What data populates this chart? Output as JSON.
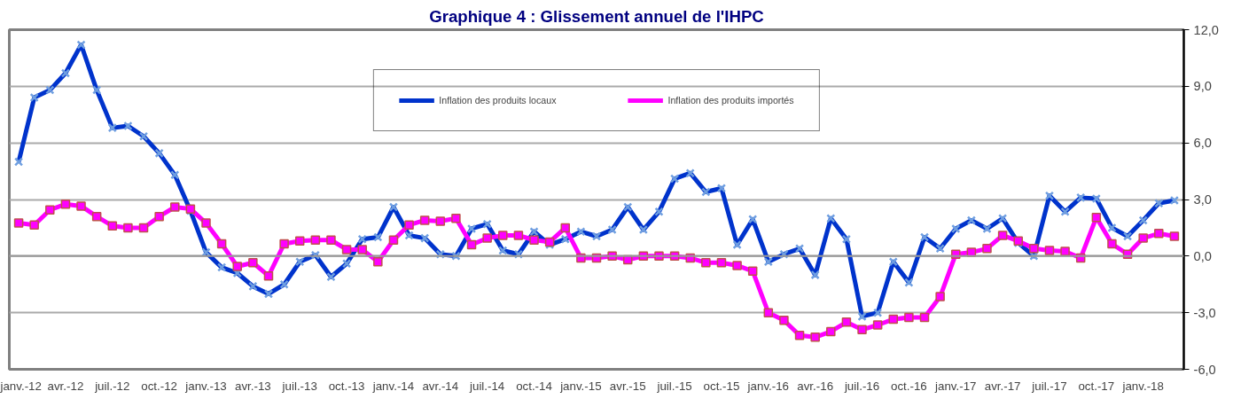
{
  "chart_data": {
    "type": "line",
    "title": "Graphique 4 : Glissement annuel de l'IHPC",
    "categories": [
      "janv.-12",
      null,
      null,
      "avr.-12",
      null,
      null,
      "juil.-12",
      null,
      null,
      "oct.-12",
      null,
      null,
      "janv.-13",
      null,
      null,
      "avr.-13",
      null,
      null,
      "juil.-13",
      null,
      null,
      "oct.-13",
      null,
      null,
      "janv.-14",
      null,
      null,
      "avr.-14",
      null,
      null,
      "juil.-14",
      null,
      null,
      "oct.-14",
      null,
      null,
      "janv.-15",
      null,
      null,
      "avr.-15",
      null,
      null,
      "juil.-15",
      null,
      null,
      "oct.-15",
      null,
      null,
      "janv.-16",
      null,
      null,
      "avr.-16",
      null,
      null,
      "juil.-16",
      null,
      null,
      "oct.-16",
      null,
      null,
      "janv.-17",
      null,
      null,
      "avr.-17",
      null,
      null,
      "juil.-17",
      null,
      null,
      "oct.-17",
      null,
      null,
      "janv.-18",
      null,
      null
    ],
    "series": [
      {
        "name": "Inflation des produits locaux",
        "color": "#0033cc",
        "marker": "cross",
        "values": [
          5.0,
          8.4,
          8.8,
          9.7,
          11.2,
          8.8,
          6.8,
          6.9,
          6.35,
          5.45,
          4.3,
          2.4,
          0.2,
          -0.6,
          -0.9,
          -1.6,
          -2.0,
          -1.5,
          -0.3,
          0.05,
          -1.1,
          -0.4,
          0.9,
          1.0,
          2.6,
          1.1,
          0.95,
          0.1,
          0.0,
          1.45,
          1.7,
          0.3,
          0.1,
          1.3,
          0.6,
          0.9,
          1.3,
          1.05,
          1.4,
          2.6,
          1.4,
          2.35,
          4.1,
          4.4,
          3.4,
          3.6,
          0.6,
          1.95,
          -0.3,
          0.1,
          0.4,
          -1.0,
          2.0,
          0.9,
          -3.2,
          -3.0,
          -0.3,
          -1.4,
          1.0,
          0.4,
          1.45,
          1.9,
          1.45,
          2.0,
          0.7,
          0.0,
          3.2,
          2.35,
          3.1,
          3.05,
          1.5,
          1.05,
          1.9,
          2.8,
          2.95
        ]
      },
      {
        "name": "Inflation des produits importés",
        "color": "#ff00ff",
        "marker": "square",
        "values": [
          1.75,
          1.65,
          2.45,
          2.75,
          2.65,
          2.1,
          1.6,
          1.5,
          1.5,
          2.1,
          2.6,
          2.5,
          1.75,
          0.65,
          -0.55,
          -0.35,
          -1.05,
          0.65,
          0.8,
          0.85,
          0.85,
          0.35,
          0.35,
          -0.3,
          0.85,
          1.65,
          1.9,
          1.85,
          2.0,
          0.6,
          0.95,
          1.1,
          1.1,
          0.85,
          0.75,
          1.5,
          -0.1,
          -0.1,
          0.0,
          -0.2,
          0.0,
          0.0,
          0.0,
          -0.1,
          -0.35,
          -0.35,
          -0.5,
          -0.8,
          -3.0,
          -3.4,
          -4.2,
          -4.3,
          -4.0,
          -3.5,
          -3.9,
          -3.65,
          -3.35,
          -3.25,
          -3.25,
          -2.15,
          0.1,
          0.2,
          0.4,
          1.1,
          0.8,
          0.4,
          0.3,
          0.25,
          -0.1,
          2.05,
          0.65,
          0.1,
          0.95,
          1.2,
          1.05
        ]
      }
    ],
    "ylim": [
      -6,
      12
    ],
    "yticks": [
      {
        "value": -6,
        "label": "-6,0"
      },
      {
        "value": -3,
        "label": "-3,0"
      },
      {
        "value": 0,
        "label": "0,0"
      },
      {
        "value": 3,
        "label": "3,0"
      },
      {
        "value": 6,
        "label": "6,0"
      },
      {
        "value": 9,
        "label": "9,0"
      },
      {
        "value": 12,
        "label": "12,0"
      }
    ],
    "grid": "y",
    "legend": "top",
    "line_style": "solid"
  }
}
